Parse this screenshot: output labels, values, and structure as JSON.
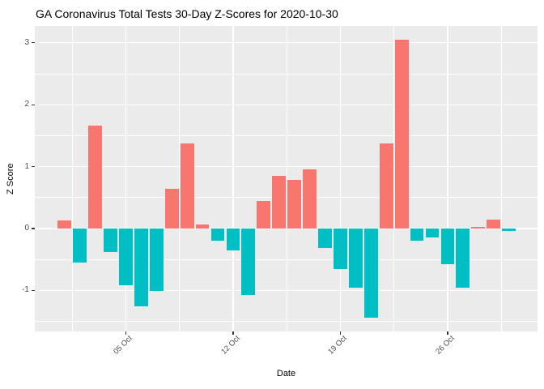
{
  "chart_data": {
    "type": "bar",
    "title": "GA Coronavirus Total Tests 30-Day Z-Scores for 2020-10-30",
    "xlabel": "Date",
    "ylabel": "Z Score",
    "x": [
      "01 Oct",
      "02 Oct",
      "03 Oct",
      "04 Oct",
      "05 Oct",
      "06 Oct",
      "07 Oct",
      "08 Oct",
      "09 Oct",
      "10 Oct",
      "11 Oct",
      "12 Oct",
      "13 Oct",
      "14 Oct",
      "15 Oct",
      "16 Oct",
      "17 Oct",
      "18 Oct",
      "19 Oct",
      "20 Oct",
      "21 Oct",
      "22 Oct",
      "23 Oct",
      "24 Oct",
      "25 Oct",
      "26 Oct",
      "27 Oct",
      "28 Oct",
      "29 Oct",
      "30 Oct"
    ],
    "values": [
      0.13,
      -0.55,
      1.66,
      -0.38,
      -0.91,
      -1.25,
      -1.01,
      0.64,
      1.38,
      0.06,
      -0.19,
      -0.35,
      -1.07,
      0.45,
      0.85,
      0.78,
      0.95,
      -0.31,
      -0.65,
      -0.95,
      -1.44,
      1.38,
      3.05,
      -0.19,
      -0.15,
      -0.58,
      -0.95,
      0.03,
      0.15,
      -0.04
    ],
    "x_ticks": [
      {
        "day": 5,
        "label": "05 Oct"
      },
      {
        "day": 12,
        "label": "12 Oct"
      },
      {
        "day": 19,
        "label": "19 Oct"
      },
      {
        "day": 26,
        "label": "26 Oct"
      }
    ],
    "x_minor_days": [
      1.5,
      8.5,
      15.5,
      22.5,
      29.5
    ],
    "y_ticks": [
      3,
      2,
      1,
      0,
      -1
    ],
    "y_minor": [
      2.5,
      1.5,
      0.5,
      -0.5,
      -1.5
    ],
    "ylim": [
      -1.66,
      3.25
    ],
    "grid": true,
    "legend": "none",
    "colors": {
      "positive": "#F8766D",
      "negative": "#00BFC4",
      "panel_bg": "#EBEBEB",
      "grid": "#FFFFFF",
      "tick_text": "#4D4D4D",
      "axis_title_text": "#000000",
      "tick_mark": "#333333",
      "background": "#FFFFFF"
    }
  }
}
